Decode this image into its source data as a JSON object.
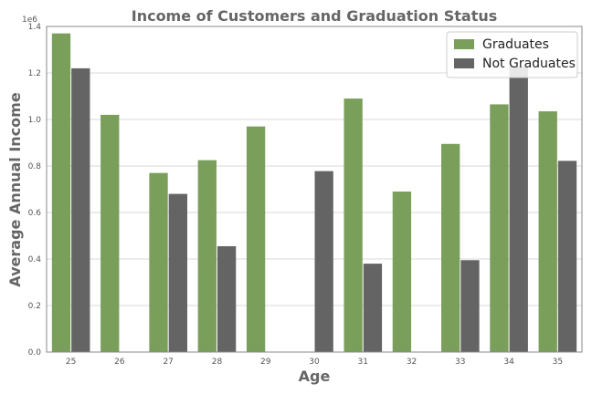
{
  "chart_data": {
    "type": "bar",
    "title": "Income of Customers and Graduation Status",
    "xlabel": "Age",
    "ylabel": "Average Annual Income",
    "y_offset_text": "1e6",
    "categories": [
      "25",
      "26",
      "27",
      "28",
      "29",
      "30",
      "31",
      "32",
      "33",
      "34",
      "35"
    ],
    "series": [
      {
        "name": "Graduates",
        "color": "#7a9f5a",
        "values": [
          1370000,
          1020000,
          770000,
          825000,
          970000,
          null,
          1090000,
          690000,
          895000,
          1065000,
          1035000
        ]
      },
      {
        "name": "Not Graduates",
        "color": "#646464",
        "values": [
          1220000,
          null,
          680000,
          455000,
          null,
          778000,
          380000,
          null,
          395000,
          1228000,
          822000
        ]
      }
    ],
    "ylim": [
      0,
      1400000
    ],
    "yticks": [
      "0.0",
      "0.2",
      "0.4",
      "0.6",
      "0.8",
      "1.0",
      "1.2",
      "1.4"
    ],
    "ytick_values": [
      0,
      200000,
      400000,
      600000,
      800000,
      1000000,
      1200000,
      1400000
    ],
    "grid": "horizontal",
    "legend_position": "top-right"
  }
}
